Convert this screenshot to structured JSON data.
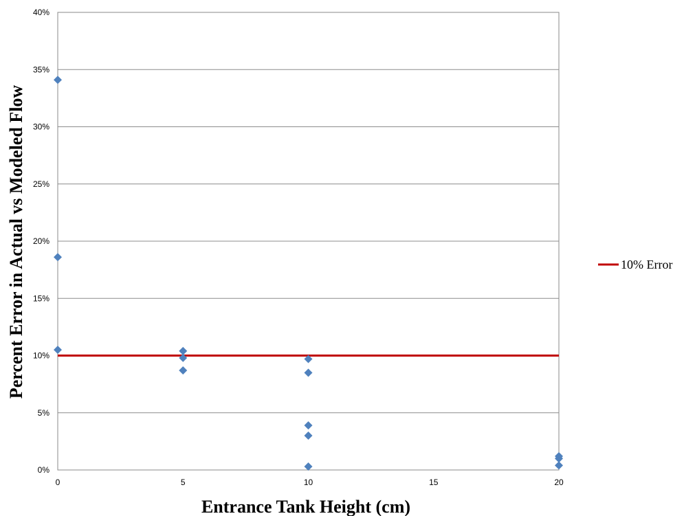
{
  "chart_data": {
    "type": "scatter",
    "xlabel": "Entrance Tank Height (cm)",
    "ylabel": "Percent Error in Actual vs Modeled Flow",
    "xlim": [
      0,
      20
    ],
    "ylim": [
      0,
      40
    ],
    "xticks": [
      0,
      5,
      10,
      15,
      20
    ],
    "yticks": [
      0,
      5,
      10,
      15,
      20,
      25,
      30,
      35,
      40
    ],
    "y_tick_format": "percent",
    "grid": "horizontal",
    "points_color": "#4f81bd",
    "points": [
      {
        "x": 0,
        "y": 34.1
      },
      {
        "x": 0,
        "y": 18.6
      },
      {
        "x": 0,
        "y": 10.5
      },
      {
        "x": 5,
        "y": 10.4
      },
      {
        "x": 5,
        "y": 9.8
      },
      {
        "x": 5,
        "y": 8.7
      },
      {
        "x": 10,
        "y": 9.7
      },
      {
        "x": 10,
        "y": 8.5
      },
      {
        "x": 10,
        "y": 3.9
      },
      {
        "x": 10,
        "y": 3.0
      },
      {
        "x": 10,
        "y": 0.3
      },
      {
        "x": 20,
        "y": 1.2
      },
      {
        "x": 20,
        "y": 1.0
      },
      {
        "x": 20,
        "y": 0.4
      }
    ],
    "reference_line": {
      "name": "10% Error",
      "y": 10,
      "color": "#c00000"
    },
    "legend": {
      "position": "right",
      "entries": [
        "10% Error"
      ]
    }
  }
}
